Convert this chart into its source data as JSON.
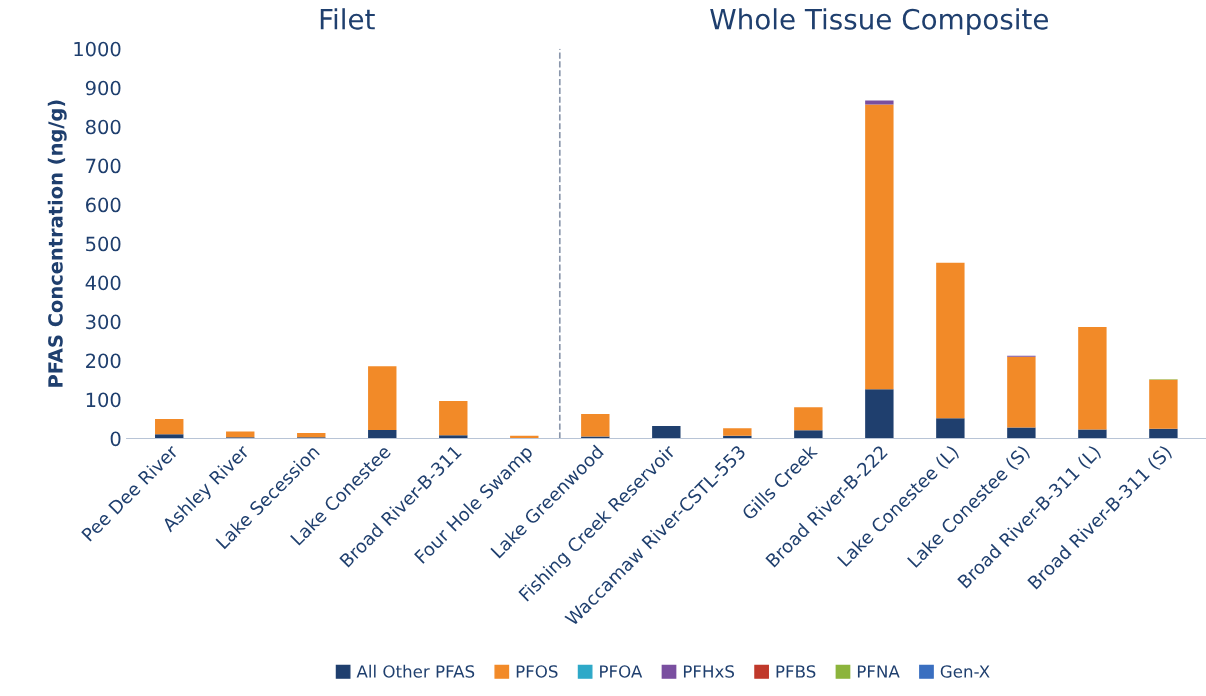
{
  "chart_data": {
    "type": "bar",
    "stacked": true,
    "ylabel": "PFAS Concentration (ng/g)",
    "categories": [
      "Pee Dee River",
      "Ashley River",
      "Lake Secession",
      "Lake Conestee",
      "Broad River-B-311",
      "Four Hole Swamp",
      "Lake Greenwood",
      "Fishing Creek Reservoir",
      "Waccamaw River-CSTL-553",
      "Gills Creek",
      "Broad River-B-222",
      "Lake Conestee (L)",
      "Lake Conestee (S)",
      "Broad River-B-311 (L)",
      "Broad River-B-311 (S)"
    ],
    "series": [
      {
        "name": "All Other PFAS",
        "color": "#1f3f6e",
        "values": [
          11,
          3,
          3,
          22,
          8,
          0,
          5,
          32,
          7,
          21,
          126,
          52,
          28,
          23,
          25
        ]
      },
      {
        "name": "PFOS",
        "color": "#f28a28",
        "values": [
          39,
          15,
          11,
          163,
          88,
          7,
          58,
          0,
          19,
          59,
          731,
          399,
          182,
          263,
          126
        ]
      },
      {
        "name": "PFOA",
        "color": "#2ea9c8",
        "values": [
          0,
          0,
          0,
          0,
          0,
          0,
          0,
          0,
          0,
          0,
          0,
          0,
          0,
          0,
          0
        ]
      },
      {
        "name": "PFHxS",
        "color": "#7a4fa0",
        "values": [
          0,
          0,
          0,
          0,
          0,
          0,
          0,
          0,
          0,
          0,
          10,
          0,
          2,
          0,
          0
        ]
      },
      {
        "name": "PFBS",
        "color": "#c0392b",
        "values": [
          0,
          0,
          0,
          0,
          0,
          0,
          0,
          0,
          0,
          0,
          0,
          0,
          0,
          0,
          0
        ]
      },
      {
        "name": "PFNA",
        "color": "#8cb43c",
        "values": [
          0,
          0,
          0,
          0,
          0,
          0,
          0,
          0,
          0,
          0,
          0,
          0,
          0,
          0,
          1
        ]
      },
      {
        "name": "Gen-X",
        "color": "#3a6fc0",
        "values": [
          0,
          0,
          0,
          0,
          0,
          0,
          0,
          0,
          0,
          0,
          0,
          0,
          0,
          0,
          0
        ]
      }
    ],
    "ylim": [
      0,
      1000
    ],
    "yticks": [
      0,
      100,
      200,
      300,
      400,
      500,
      600,
      700,
      800,
      900,
      1000
    ],
    "annotations": [
      "Filet",
      "Whole Tissue Composite"
    ],
    "grid": false,
    "legend": "bottom"
  }
}
